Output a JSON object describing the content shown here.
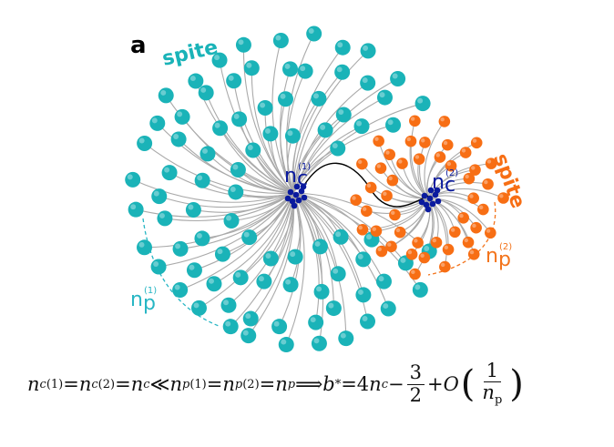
{
  "panel_label": "a",
  "spite_left": "spite",
  "spite_right": "spite",
  "core_label_1": {
    "base": "n",
    "sub": "c",
    "sup": "(1)"
  },
  "core_label_2": {
    "base": "n",
    "sub": "c",
    "sup": "(2)"
  },
  "pend_label_1": {
    "base": "n",
    "sub": "p",
    "sup": "(1)"
  },
  "pend_label_2": {
    "base": "n",
    "sub": "p",
    "sup": "(2)"
  },
  "colors": {
    "teal": "#1ab3b8",
    "orange": "#f76e14",
    "core": "#0a1a9e",
    "chain": "#aaaaaa",
    "bridge": "#000000",
    "label_teal": "#27b6c4",
    "label_orange": "#f3741c"
  },
  "equation": {
    "n": "n",
    "c": "c",
    "p": "p",
    "b": "b",
    "O": "O",
    "sup1": "(1)",
    "sup2": "(2)",
    "star": "*",
    "eq": " = ",
    "ll": " ≪ ",
    "implies": " ⟹ ",
    "four": "4",
    "minus": " − ",
    "three": "3",
    "two": "2",
    "plus": " + ",
    "one": "1",
    "lparen": "(",
    "rparen": ")"
  }
}
